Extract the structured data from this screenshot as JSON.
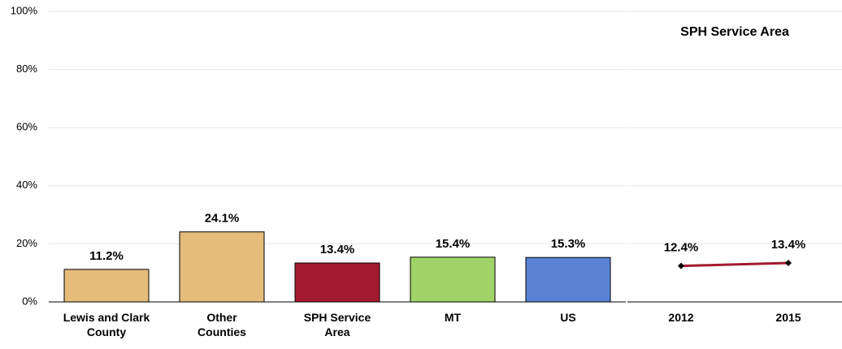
{
  "chart_data": [
    {
      "type": "bar",
      "categories": [
        "Lewis and Clark County",
        "Other Counties",
        "SPH Service Area",
        "MT",
        "US"
      ],
      "values": [
        11.2,
        24.1,
        13.4,
        15.4,
        15.3
      ],
      "value_labels": [
        "11.2%",
        "24.1%",
        "13.4%",
        "15.4%",
        "15.3%"
      ],
      "colors": [
        "#e6bc7a",
        "#e6bc7a",
        "#a3192e",
        "#a0d468",
        "#5a83d5"
      ],
      "ylim": [
        0,
        100
      ],
      "yticks": [
        {
          "value": 0,
          "label": "0%"
        },
        {
          "value": 20,
          "label": "20%"
        },
        {
          "value": 40,
          "label": "40%"
        },
        {
          "value": 60,
          "label": "60%"
        },
        {
          "value": 80,
          "label": "80%"
        },
        {
          "value": 100,
          "label": "100%"
        }
      ],
      "grid": true
    },
    {
      "type": "line",
      "title": "SPH Service Area",
      "categories": [
        "2012",
        "2015"
      ],
      "values": [
        12.4,
        13.4
      ],
      "value_labels": [
        "12.4%",
        "13.4%"
      ],
      "color": "#a3192e",
      "ylim": [
        0,
        100
      ],
      "yticks": [
        0,
        20,
        40,
        60,
        80,
        100
      ],
      "grid": true
    }
  ]
}
